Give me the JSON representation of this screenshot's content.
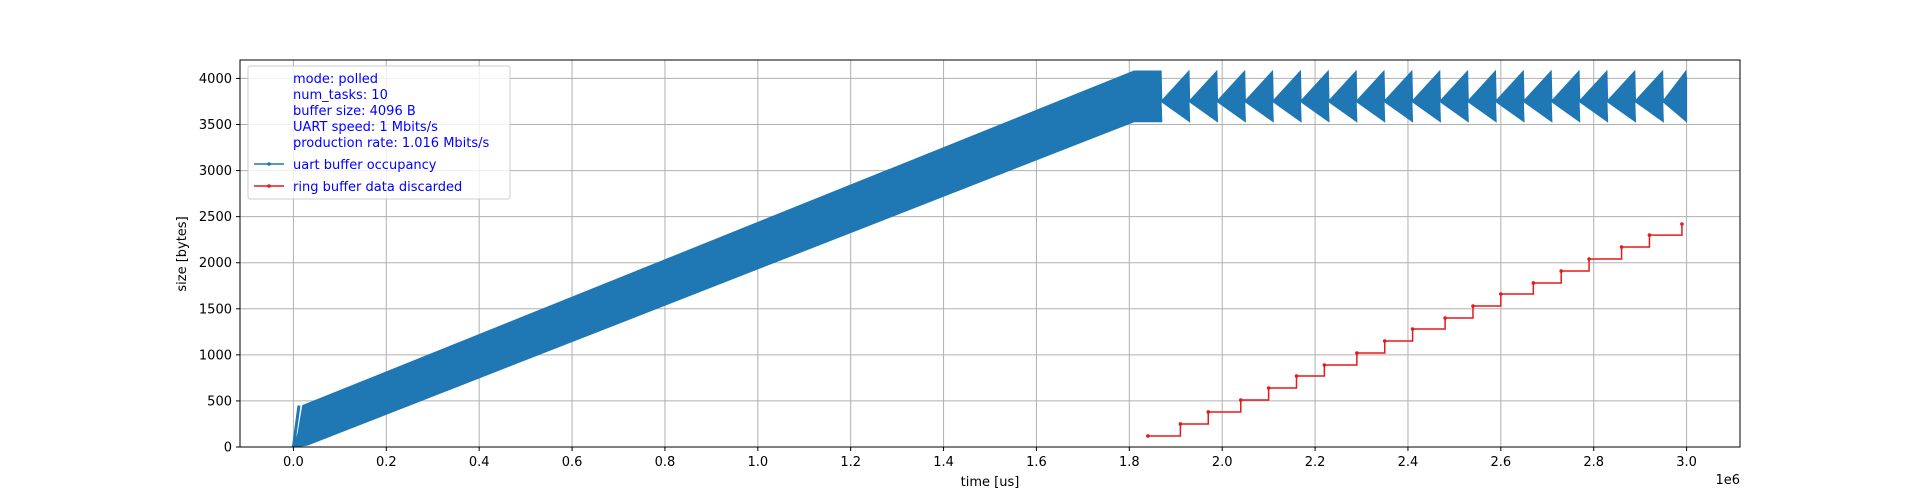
{
  "chart_data": {
    "type": "line",
    "xlabel": "time [us]",
    "ylabel": "size [bytes]",
    "x_offset_label": "1e6",
    "xlim": [
      -115000,
      3115000
    ],
    "ylim": [
      0,
      4200
    ],
    "x_ticks": [
      0.0,
      0.2,
      0.4,
      0.6,
      0.8,
      1.0,
      1.2,
      1.4,
      1.6,
      1.8,
      2.0,
      2.2,
      2.4,
      2.6,
      2.8,
      3.0
    ],
    "x_tick_labels": [
      "0.0",
      "0.2",
      "0.4",
      "0.6",
      "0.8",
      "1.0",
      "1.2",
      "1.4",
      "1.6",
      "1.8",
      "2.0",
      "2.2",
      "2.4",
      "2.6",
      "2.8",
      "3.0"
    ],
    "y_ticks": [
      0,
      500,
      1000,
      1500,
      2000,
      2500,
      3000,
      3500,
      4000
    ],
    "y_tick_labels": [
      "0",
      "500",
      "1000",
      "1500",
      "2000",
      "2500",
      "3000",
      "3500",
      "4000"
    ],
    "grid": true,
    "legend_position": "top-left",
    "legend_text_lines": [
      "mode: polled",
      "num_tasks: 10",
      "buffer size: 4096 B",
      "UART speed: 1 Mbits/s",
      "production rate: 1.016 Mbits/s"
    ],
    "series": [
      {
        "name": "uart buffer occupancy",
        "color": "#1f77b4",
        "style": "band",
        "upper": [
          [
            0,
            0
          ],
          [
            10000,
            150
          ],
          [
            20000,
            450
          ],
          [
            1810000,
            4080
          ],
          [
            3000000,
            4080
          ]
        ],
        "lower": [
          [
            0,
            0
          ],
          [
            30000,
            20
          ],
          [
            1810000,
            3530
          ],
          [
            3000000,
            3530
          ]
        ],
        "sawtooth_start": 1810000,
        "sawtooth_period": 60000
      },
      {
        "name": "ring buffer data discarded",
        "color": "#e41a1c",
        "style": "step",
        "x": [
          1840000,
          1910000,
          1970000,
          2040000,
          2100000,
          2160000,
          2220000,
          2290000,
          2350000,
          2410000,
          2480000,
          2540000,
          2600000,
          2670000,
          2730000,
          2790000,
          2860000,
          2920000,
          2990000
        ],
        "y": [
          120,
          250,
          380,
          510,
          640,
          770,
          890,
          1020,
          1150,
          1280,
          1400,
          1530,
          1660,
          1780,
          1910,
          2040,
          2170,
          2300,
          2420
        ]
      }
    ]
  }
}
